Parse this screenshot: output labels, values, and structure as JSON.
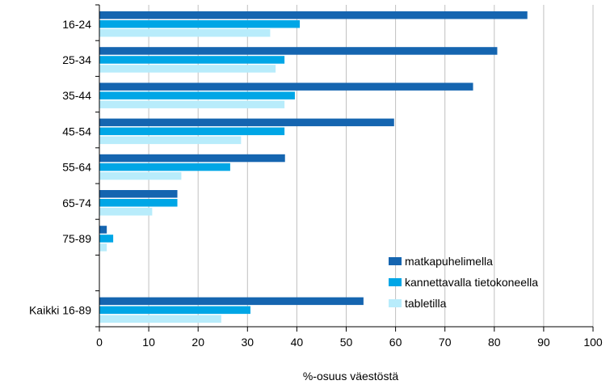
{
  "chart_data": {
    "type": "bar",
    "orientation": "horizontal",
    "categories": [
      "16-24",
      "25-34",
      "35-44",
      "45-54",
      "55-64",
      "65-74",
      "75-89",
      "",
      "Kaikki 16-89"
    ],
    "series": [
      {
        "name": "matkapuhelimella",
        "color": "#1565b0",
        "values": [
          86.7,
          80.6,
          75.7,
          59.7,
          37.6,
          15.8,
          1.5,
          null,
          53.5
        ]
      },
      {
        "name": "kannettavalla tietokoneella",
        "color": "#00a6e6",
        "values": [
          40.6,
          37.5,
          39.6,
          37.5,
          26.5,
          15.8,
          2.8,
          null,
          30.6
        ]
      },
      {
        "name": "tabletilla",
        "color": "#b8ecfb",
        "values": [
          34.6,
          35.7,
          37.5,
          28.7,
          16.6,
          10.7,
          1.5,
          null,
          24.7
        ]
      }
    ],
    "xlim": [
      0,
      100
    ],
    "xticks": [
      0,
      10,
      20,
      30,
      40,
      50,
      60,
      70,
      80,
      90,
      100
    ],
    "xlabel": "%-osuus väestöstä",
    "grid": "vertical",
    "legend_position": "bottom-right"
  }
}
